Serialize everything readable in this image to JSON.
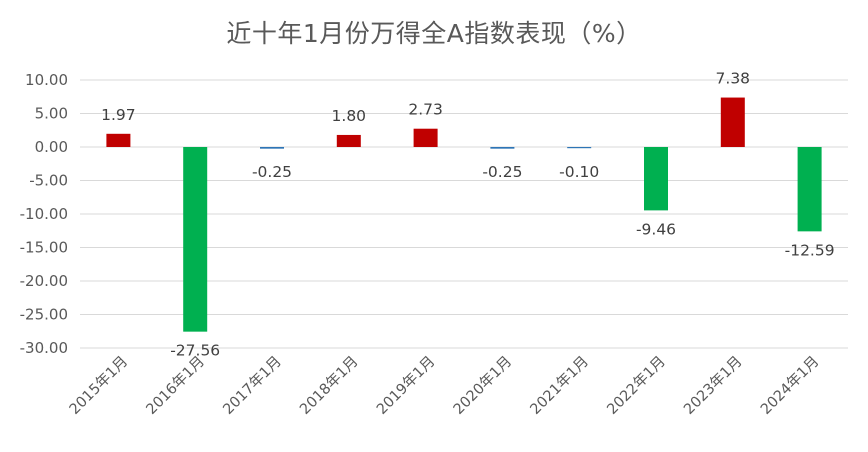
{
  "chart_data": {
    "type": "bar",
    "title": "近十年1月份万得全A指数表现（%）",
    "categories": [
      "2015年1月",
      "2016年1月",
      "2017年1月",
      "2018年1月",
      "2019年1月",
      "2020年1月",
      "2021年1月",
      "2022年1月",
      "2023年1月",
      "2024年1月"
    ],
    "values": [
      1.97,
      -27.56,
      -0.25,
      1.8,
      2.73,
      -0.25,
      -0.1,
      -9.46,
      7.38,
      -12.59
    ],
    "data_labels": [
      "1.97",
      "-27.56",
      "-0.25",
      "1.80",
      "2.73",
      "-0.25",
      "-0.10",
      "-9.46",
      "7.38",
      "-12.59"
    ],
    "yticks": [
      "10.00",
      "5.00",
      "0.00",
      "-5.00",
      "-10.00",
      "-15.00",
      "-20.00",
      "-25.00",
      "-30.00"
    ],
    "ylim": [
      -30,
      10
    ],
    "grid": true,
    "colors": {
      "positive": "#C00000",
      "negative": "#00B050",
      "small": "#2E75B6",
      "grid": "#D9D9D9",
      "text": "#595959"
    }
  }
}
